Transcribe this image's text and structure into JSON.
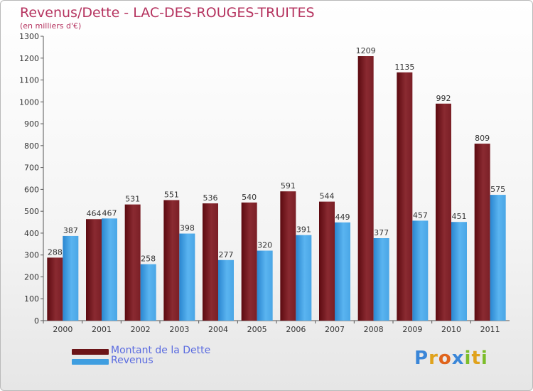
{
  "header": {
    "title": "Revenus/Dette - LAC-DES-ROUGES-TRUITES",
    "subtitle": "(en milliers d'€)"
  },
  "chart_data": {
    "type": "bar",
    "categories": [
      "2000",
      "2001",
      "2002",
      "2003",
      "2004",
      "2005",
      "2006",
      "2007",
      "2008",
      "2009",
      "2010",
      "2011"
    ],
    "series": [
      {
        "name": "Montant de la Dette",
        "color": "#7a1f26",
        "values": [
          288,
          464,
          531,
          551,
          536,
          540,
          591,
          544,
          1209,
          1135,
          992,
          809
        ]
      },
      {
        "name": "Revenus",
        "color": "#3f9ee0",
        "values": [
          387,
          467,
          258,
          398,
          277,
          320,
          391,
          449,
          377,
          457,
          451,
          575
        ]
      }
    ],
    "ylim": [
      0,
      1300
    ],
    "yticks": [
      0,
      100,
      200,
      300,
      400,
      500,
      600,
      700,
      800,
      900,
      1000,
      1100,
      1200,
      1300
    ],
    "grid": false,
    "legend_position": "bottom-left"
  },
  "legend": {
    "items": [
      {
        "label": "Montant de la Dette",
        "color": "#6b1418"
      },
      {
        "label": "Revenus",
        "color": "#3f9ee0"
      }
    ]
  },
  "logo": {
    "letters": [
      "P",
      "r",
      "o",
      "x",
      "i",
      "t",
      "i"
    ],
    "colors": [
      "#3a86d8",
      "#e0a21c",
      "#e0641c",
      "#3a86d8",
      "#7cbd2a",
      "#e0a21c",
      "#7cbd2a"
    ]
  }
}
